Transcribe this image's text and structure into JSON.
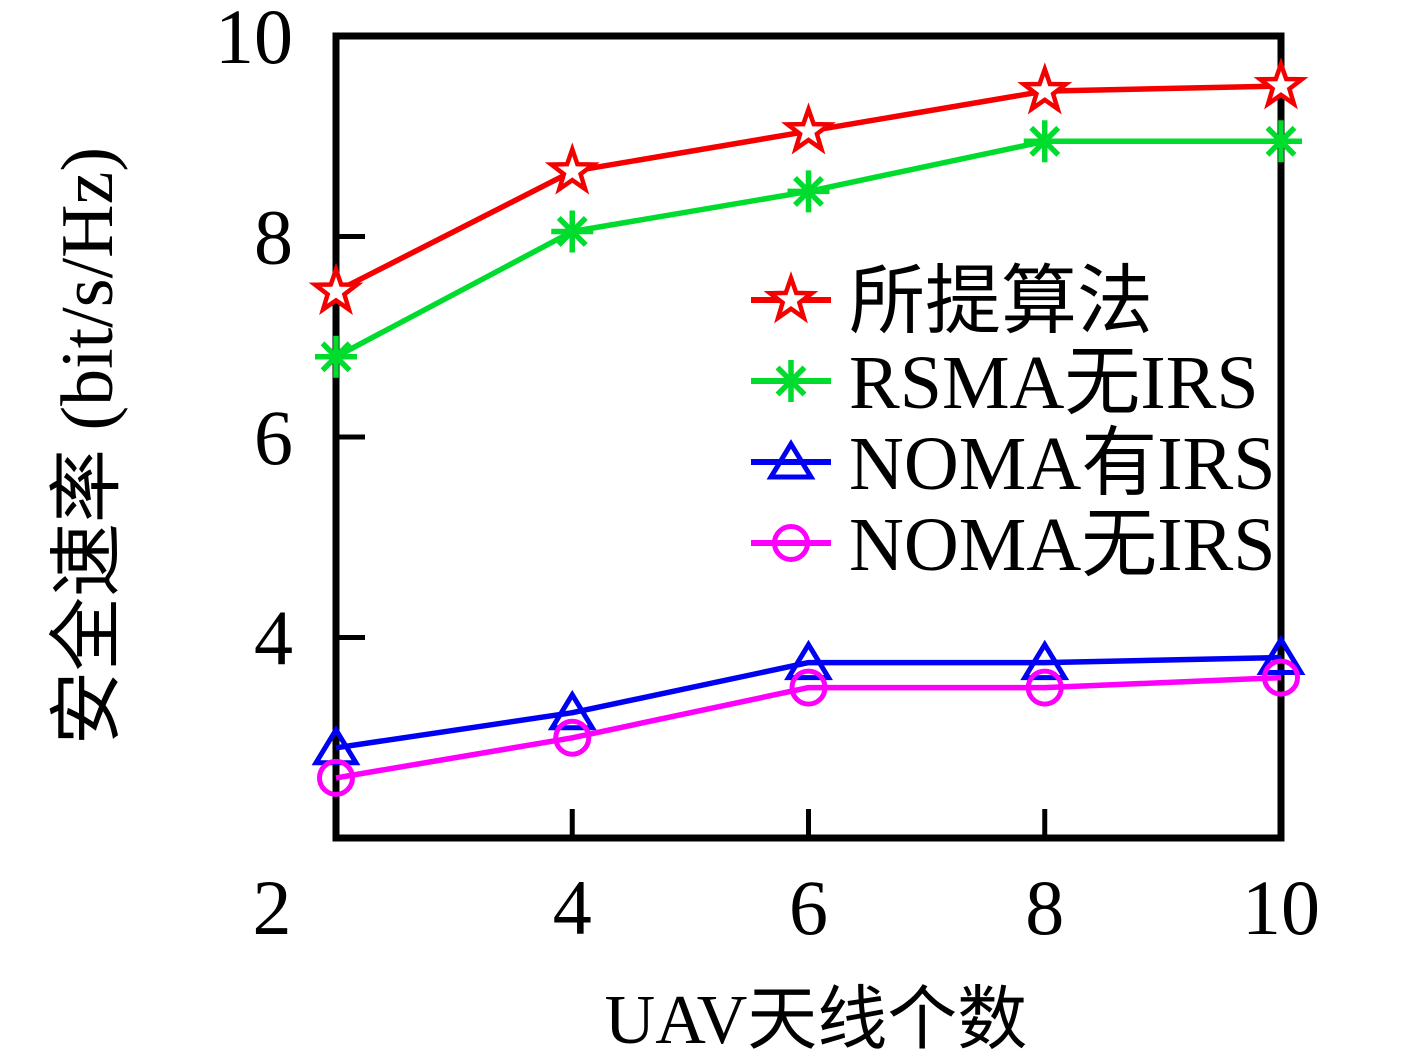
{
  "figure": {
    "xlabel": "UAV天线个数",
    "ylabel": "安全速率 (bit/s/Hz)"
  },
  "chart_data": {
    "type": "line",
    "title": "",
    "xlabel": "UAV天线个数",
    "ylabel": "安全速率 (bit/s/Hz)",
    "x": [
      2,
      4,
      6,
      8,
      10
    ],
    "xlim": [
      2,
      10
    ],
    "ylim": [
      2,
      10
    ],
    "xticks": [
      2,
      4,
      6,
      8,
      10
    ],
    "yticks": [
      4,
      6,
      8,
      10
    ],
    "grid": false,
    "legend_position": "inside-center-right",
    "legend_frame": false,
    "axis_color": "#000000",
    "background": "#ffffff",
    "series": [
      {
        "name": "所提算法",
        "color": "#f40000",
        "marker": "star5",
        "values": [
          7.45,
          8.65,
          9.05,
          9.45,
          9.5
        ]
      },
      {
        "name": "RSMA无IRS",
        "color": "#00dc2e",
        "marker": "asterisk",
        "values": [
          6.8,
          8.05,
          8.45,
          8.95,
          8.95
        ]
      },
      {
        "name": "NOMA有IRS",
        "color": "#0000f2",
        "marker": "triangle-up",
        "values": [
          2.9,
          3.25,
          3.75,
          3.75,
          3.8
        ]
      },
      {
        "name": "NOMA无IRS",
        "color": "#fc00fc",
        "marker": "circle",
        "values": [
          2.6,
          3.0,
          3.5,
          3.5,
          3.6
        ]
      }
    ]
  }
}
